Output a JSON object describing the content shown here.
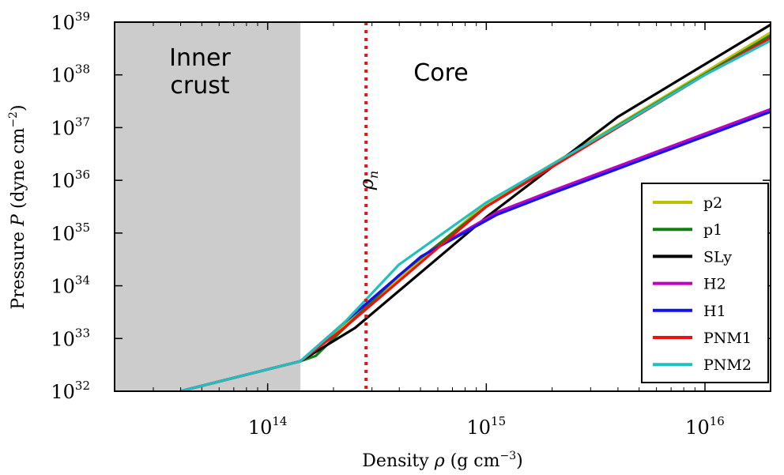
{
  "chart_data": {
    "type": "line",
    "title": "",
    "xlabel": "Density ρ (g cm⁻³)",
    "xlabel_parts": {
      "pre": "Density ",
      "sym": "ρ",
      "mid": " (g cm",
      "exp": "−3",
      "post": ")"
    },
    "ylabel": "Pressure P (dyne cm⁻²)",
    "ylabel_parts": {
      "pre": "Pressure ",
      "sym": "P",
      "mid": " (dyne cm",
      "exp": "−2",
      "post": ")"
    },
    "xscale": "log",
    "yscale": "log",
    "xlim_log10": [
      13.3,
      16.3
    ],
    "ylim_log10": [
      32,
      39
    ],
    "x_ticks": [
      {
        "log": 14,
        "base": "10",
        "exp": "14"
      },
      {
        "log": 15,
        "base": "10",
        "exp": "15"
      },
      {
        "log": 16,
        "base": "10",
        "exp": "16"
      }
    ],
    "y_ticks": [
      {
        "log": 32,
        "base": "10",
        "exp": "32"
      },
      {
        "log": 33,
        "base": "10",
        "exp": "33"
      },
      {
        "log": 34,
        "base": "10",
        "exp": "34"
      },
      {
        "log": 35,
        "base": "10",
        "exp": "35"
      },
      {
        "log": 36,
        "base": "10",
        "exp": "36"
      },
      {
        "log": 37,
        "base": "10",
        "exp": "37"
      },
      {
        "log": 38,
        "base": "10",
        "exp": "38"
      },
      {
        "log": 39,
        "base": "10",
        "exp": "39"
      }
    ],
    "shaded_region": {
      "label_line1": "Inner",
      "label_line2": "crust",
      "x_log_range": [
        13.3,
        14.15
      ],
      "color": "#cccccc"
    },
    "core_label": "Core",
    "vline": {
      "x_log": 14.45,
      "label_sym": "ρ",
      "label_sub": "n",
      "color": "#ee1111"
    },
    "legend_position": "lower-right",
    "series": [
      {
        "name": "p2",
        "color": "#bfbf00",
        "x_log": [
          13.6,
          14.15,
          14.35,
          15.0,
          15.6,
          16.0,
          16.3
        ],
        "y_log": [
          32.0,
          32.57,
          33.25,
          35.56,
          37.05,
          38.05,
          38.8
        ]
      },
      {
        "name": "p1",
        "color": "#118011",
        "x_log": [
          13.6,
          14.15,
          14.22,
          14.6,
          15.0,
          15.6,
          16.3
        ],
        "y_log": [
          32.0,
          32.57,
          32.67,
          34.2,
          35.5,
          37.03,
          38.75
        ]
      },
      {
        "name": "SLy",
        "color": "#000000",
        "x_log": [
          13.6,
          14.15,
          14.4,
          15.0,
          15.6,
          16.3
        ],
        "y_log": [
          32.0,
          32.57,
          33.2,
          35.3,
          37.2,
          38.95
        ]
      },
      {
        "name": "H2",
        "color": "#bf00bf",
        "x_log": [
          13.6,
          14.15,
          14.35,
          14.7,
          15.05,
          15.3,
          16.3
        ],
        "y_log": [
          32.0,
          32.57,
          33.3,
          34.55,
          35.4,
          35.8,
          37.35
        ]
      },
      {
        "name": "H1",
        "color": "#1111ee",
        "x_log": [
          13.6,
          14.15,
          14.35,
          14.7,
          15.05,
          15.3,
          16.3
        ],
        "y_log": [
          32.0,
          32.57,
          33.3,
          34.55,
          35.35,
          35.75,
          37.3
        ]
      },
      {
        "name": "PNM1",
        "color": "#ee1111",
        "x_log": [
          13.6,
          14.15,
          14.35,
          15.0,
          15.6,
          16.0,
          16.3
        ],
        "y_log": [
          32.0,
          32.57,
          33.2,
          35.5,
          37.0,
          38.0,
          38.7
        ]
      },
      {
        "name": "PNM2",
        "color": "#22bfbf",
        "x_log": [
          13.6,
          14.15,
          14.35,
          14.6,
          15.0,
          15.6,
          16.0,
          16.3
        ],
        "y_log": [
          32.0,
          32.57,
          33.3,
          34.4,
          35.58,
          37.02,
          38.0,
          38.65
        ]
      }
    ]
  }
}
